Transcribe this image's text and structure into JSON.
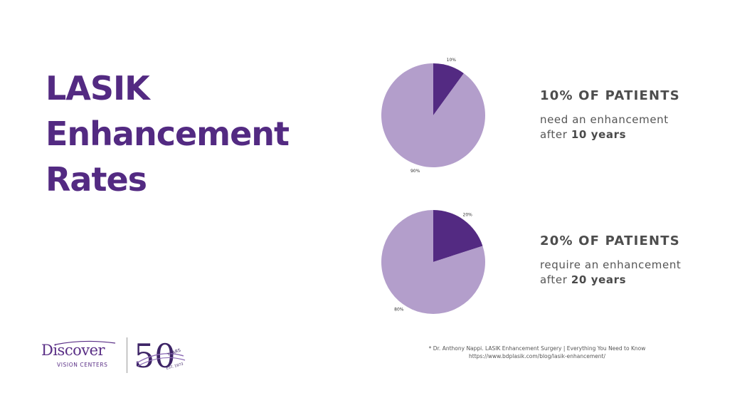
{
  "title": {
    "line1": "LASIK",
    "line2": "Enhancement",
    "line3": "Rates"
  },
  "colors": {
    "title": "#532a82",
    "pie_dark": "#532a82",
    "pie_light": "#b39ecb",
    "text_gray": "#555555"
  },
  "chart_data": [
    {
      "type": "pie",
      "title": "",
      "categories": [
        "",
        ""
      ],
      "values": [
        10,
        90
      ],
      "labels": [
        "10%",
        "90%"
      ],
      "colors": [
        "#532a82",
        "#b39ecb"
      ],
      "legend": false
    },
    {
      "type": "pie",
      "title": "",
      "categories": [
        "",
        ""
      ],
      "values": [
        20,
        80
      ],
      "labels": [
        "20%",
        "80%"
      ],
      "colors": [
        "#532a82",
        "#b39ecb"
      ],
      "legend": false
    }
  ],
  "stats": [
    {
      "heading": "10% OF PATIENTS",
      "line1": "need an enhancement",
      "line2_prefix": "after ",
      "line2_bold": "10 years"
    },
    {
      "heading": "20% OF PATIENTS",
      "line1": "require an enhancement",
      "line2_prefix": "after ",
      "line2_bold": "20 years"
    }
  ],
  "logo": {
    "wordmark": "Discover",
    "subtitle": "VISION CENTERS",
    "anniversary_number": "50",
    "anniversary_years": "YEARS",
    "anniversary_est": "EST. 1973"
  },
  "citation": {
    "line1": "* Dr. Anthony Nappi. LASIK Enhancement Surgery | Everything You Need to Know",
    "line2": "https://www.bdplasik.com/blog/lasik-enhancement/"
  }
}
